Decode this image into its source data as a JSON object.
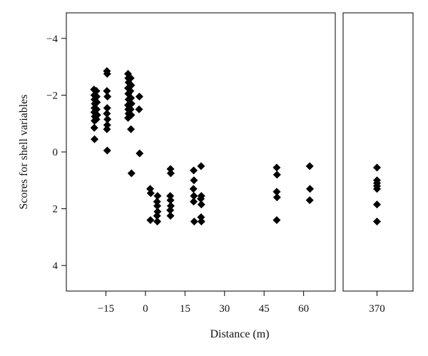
{
  "chart_data": {
    "type": "scatter",
    "xlabel": "Distance (m)",
    "ylabel": "Scores for shell variables",
    "y_axis_reversed": true,
    "ylim": [
      4.9,
      -4.9
    ],
    "y_ticks": [
      -4,
      -2,
      0,
      2,
      4
    ],
    "y_tick_labels": [
      "−4",
      "−2",
      "0",
      "2",
      "4"
    ],
    "marker": "filled-diamond",
    "marker_color": "#000000",
    "grid": false,
    "legend": "none",
    "panels": [
      {
        "name": "main",
        "xlim": [
          -30,
          72
        ],
        "x_ticks": [
          -15,
          0,
          15,
          30,
          45,
          60
        ],
        "x_tick_labels": [
          "−15",
          "0",
          "15",
          "30",
          "45",
          "60"
        ],
        "points": [
          [
            -19.5,
            -2.2
          ],
          [
            -19.4,
            -2.0
          ],
          [
            -19.3,
            -1.85
          ],
          [
            -19.2,
            -1.7
          ],
          [
            -19.3,
            -1.55
          ],
          [
            -19.4,
            -1.4
          ],
          [
            -19.2,
            -1.25
          ],
          [
            -19.3,
            -1.1
          ],
          [
            -19.4,
            -0.85
          ],
          [
            -19.3,
            -0.45
          ],
          [
            -18.6,
            -2.15
          ],
          [
            -18.5,
            -1.95
          ],
          [
            -18.4,
            -1.75
          ],
          [
            -18.5,
            -1.5
          ],
          [
            -18.3,
            -1.3
          ],
          [
            -18.6,
            -1.15
          ],
          [
            -14.6,
            -2.85
          ],
          [
            -14.5,
            -2.75
          ],
          [
            -14.6,
            -2.15
          ],
          [
            -14.4,
            -1.95
          ],
          [
            -14.5,
            -1.55
          ],
          [
            -14.6,
            -1.35
          ],
          [
            -14.4,
            -1.15
          ],
          [
            -14.5,
            -0.95
          ],
          [
            -14.6,
            -0.8
          ],
          [
            -14.5,
            -0.05
          ],
          [
            -6.6,
            -2.75
          ],
          [
            -6.5,
            -2.6
          ],
          [
            -6.4,
            -2.45
          ],
          [
            -6.6,
            -2.25
          ],
          [
            -6.5,
            -2.05
          ],
          [
            -6.4,
            -1.85
          ],
          [
            -6.6,
            -1.65
          ],
          [
            -6.5,
            -1.5
          ],
          [
            -6.4,
            -1.35
          ],
          [
            -6.6,
            -1.2
          ],
          [
            -5.6,
            -2.6
          ],
          [
            -5.4,
            -2.35
          ],
          [
            -5.7,
            -2.15
          ],
          [
            -5.5,
            -1.9
          ],
          [
            -5.3,
            -1.7
          ],
          [
            -5.6,
            -1.5
          ],
          [
            -5.4,
            -1.3
          ],
          [
            -5.5,
            -0.8
          ],
          [
            -5.3,
            0.75
          ],
          [
            -2.3,
            -1.95
          ],
          [
            -2.4,
            -1.5
          ],
          [
            -2.2,
            0.05
          ],
          [
            1.8,
            1.3
          ],
          [
            2.0,
            1.45
          ],
          [
            1.9,
            2.4
          ],
          [
            4.6,
            1.55
          ],
          [
            4.4,
            1.75
          ],
          [
            4.5,
            1.9
          ],
          [
            4.6,
            2.1
          ],
          [
            4.4,
            2.25
          ],
          [
            4.5,
            2.45
          ],
          [
            9.5,
            0.6
          ],
          [
            9.6,
            0.75
          ],
          [
            9.4,
            1.55
          ],
          [
            9.5,
            1.7
          ],
          [
            9.6,
            1.9
          ],
          [
            9.4,
            2.05
          ],
          [
            9.5,
            2.25
          ],
          [
            18.3,
            0.65
          ],
          [
            18.4,
            1.0
          ],
          [
            18.2,
            1.3
          ],
          [
            18.4,
            1.55
          ],
          [
            18.3,
            1.75
          ],
          [
            18.5,
            2.45
          ],
          [
            21.1,
            0.5
          ],
          [
            21.2,
            1.55
          ],
          [
            21.0,
            1.65
          ],
          [
            21.2,
            1.85
          ],
          [
            21.1,
            2.3
          ],
          [
            21.2,
            2.45
          ],
          [
            49.8,
            0.55
          ],
          [
            49.9,
            0.8
          ],
          [
            49.8,
            1.4
          ],
          [
            49.9,
            1.6
          ],
          [
            49.8,
            2.4
          ],
          [
            62.3,
            0.5
          ],
          [
            62.4,
            1.3
          ],
          [
            62.3,
            1.7
          ]
        ]
      },
      {
        "name": "far",
        "xlim": [
          354,
          387
        ],
        "x_ticks": [
          370
        ],
        "x_tick_labels": [
          "370"
        ],
        "points": [
          [
            370,
            0.55
          ],
          [
            370,
            1.0
          ],
          [
            370,
            1.1
          ],
          [
            370,
            1.2
          ],
          [
            370,
            1.3
          ],
          [
            370,
            1.85
          ],
          [
            370,
            2.45
          ]
        ]
      }
    ]
  }
}
